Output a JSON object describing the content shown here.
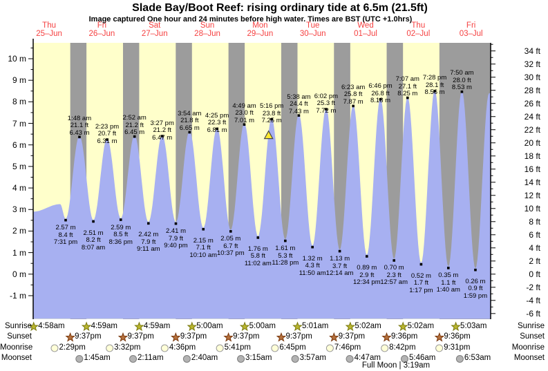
{
  "header": {
    "title": "Slade Bay/Boot Reef: rising  ordinary tide at 6.5m (21.5ft)",
    "subtitle": "Image captured One hour and 24 minutes before high water. Times are BST (UTC +1.0hrs)"
  },
  "days": [
    {
      "name": "Thu",
      "date": "25–Jun"
    },
    {
      "name": "Fri",
      "date": "26–Jun"
    },
    {
      "name": "Sat",
      "date": "27–Jun"
    },
    {
      "name": "Sun",
      "date": "28–Jun"
    },
    {
      "name": "Mon",
      "date": "29–Jun"
    },
    {
      "name": "Tue",
      "date": "30–Jun"
    },
    {
      "name": "Wed",
      "date": "01–Jul"
    },
    {
      "name": "Thu",
      "date": "02–Jul"
    },
    {
      "name": "Fri",
      "date": "03–Jul"
    }
  ],
  "chart_data": {
    "type": "area",
    "title": "Slade Bay/Boot Reef tide curve",
    "y_axis_left": {
      "unit": "m",
      "min": -1,
      "max": 10,
      "step": 1,
      "minor": 0.5
    },
    "y_axis_right": {
      "unit": "ft",
      "min": -6,
      "max": 34,
      "step": 2,
      "minor": 1
    },
    "colors": {
      "day": "#ffffcb",
      "night": "#9c9c9c",
      "water": "#a7b0f1",
      "label_red": "#f54040",
      "sunrise_star": "#b9b52e",
      "sunset_star": "#b5703c",
      "moonrise_disc": "#ffffd8",
      "moonset_disc": "#b3b3b3",
      "marker": "#ffe930"
    },
    "events": [
      {
        "type": "low",
        "time": "7:31 pm",
        "ft": "8.4 ft",
        "m": "2.57 m",
        "t": 19.517,
        "h": 2.57
      },
      {
        "type": "high",
        "time": "1:48 am",
        "ft": "21.1 ft",
        "m": "6.43 m",
        "t": 25.8,
        "h": 6.43
      },
      {
        "type": "low",
        "time": "8:07 am",
        "ft": "8.2 ft",
        "m": "2.51 m",
        "t": 32.117,
        "h": 2.51
      },
      {
        "type": "high",
        "time": "2:23 pm",
        "ft": "20.7 ft",
        "m": "6.31 m",
        "t": 38.383,
        "h": 6.31
      },
      {
        "type": "low",
        "time": "8:36 pm",
        "ft": "8.5 ft",
        "m": "2.59 m",
        "t": 44.6,
        "h": 2.59
      },
      {
        "type": "high",
        "time": "2:52 am",
        "ft": "21.2 ft",
        "m": "6.45 m",
        "t": 50.867,
        "h": 6.45
      },
      {
        "type": "low",
        "time": "9:11 am",
        "ft": "7.9 ft",
        "m": "2.42 m",
        "t": 57.183,
        "h": 2.42
      },
      {
        "type": "high",
        "time": "3:27 pm",
        "ft": "21.2 ft",
        "m": "6.47 m",
        "t": 63.45,
        "h": 6.47
      },
      {
        "type": "low",
        "time": "9:40 pm",
        "ft": "7.9 ft",
        "m": "2.41 m",
        "t": 69.667,
        "h": 2.41
      },
      {
        "type": "high",
        "time": "3:54 am",
        "ft": "21.8 ft",
        "m": "6.65 m",
        "t": 75.9,
        "h": 6.65
      },
      {
        "type": "low",
        "time": "10:10 am",
        "ft": "7.1 ft",
        "m": "2.15 m",
        "t": 82.167,
        "h": 2.15
      },
      {
        "type": "high",
        "time": "4:25 pm",
        "ft": "22.3 ft",
        "m": "6.81 m",
        "t": 88.417,
        "h": 6.81
      },
      {
        "type": "low",
        "time": "10:37 pm",
        "ft": "6.7 ft",
        "m": "2.05 m",
        "t": 94.617,
        "h": 2.05
      },
      {
        "type": "high",
        "time": "4:49 am",
        "ft": "23.0 ft",
        "m": "7.01 m",
        "t": 100.817,
        "h": 7.01
      },
      {
        "type": "low",
        "time": "11:02 am",
        "ft": "5.8 ft",
        "m": "1.76 m",
        "t": 107.033,
        "h": 1.76
      },
      {
        "type": "high",
        "time": "5:16 pm",
        "ft": "23.8 ft",
        "m": "7.25 m",
        "t": 113.267,
        "h": 7.25
      },
      {
        "type": "low",
        "time": "11:28 pm",
        "ft": "5.3 ft",
        "m": "1.61 m",
        "t": 119.467,
        "h": 1.61
      },
      {
        "type": "high",
        "time": "5:38 am",
        "ft": "24.4 ft",
        "m": "7.43 m",
        "t": 125.633,
        "h": 7.43
      },
      {
        "type": "low",
        "time": "11:50 am",
        "ft": "4.3 ft",
        "m": "1.32 m",
        "t": 131.833,
        "h": 1.32
      },
      {
        "type": "high",
        "time": "6:02 pm",
        "ft": "25.3 ft",
        "m": "7.72 m",
        "t": 138.033,
        "h": 7.72
      },
      {
        "type": "low",
        "time": "12:14 am",
        "ft": "3.7 ft",
        "m": "1.13 m",
        "t": 144.233,
        "h": 1.13
      },
      {
        "type": "high",
        "time": "6:23 am",
        "ft": "25.8 ft",
        "m": "7.87 m",
        "t": 150.383,
        "h": 7.87
      },
      {
        "type": "low",
        "time": "12:34 pm",
        "ft": "2.9 ft",
        "m": "0.89 m",
        "t": 156.567,
        "h": 0.89
      },
      {
        "type": "high",
        "time": "6:46 pm",
        "ft": "26.8 ft",
        "m": "8.18 m",
        "t": 162.767,
        "h": 8.18
      },
      {
        "type": "low",
        "time": "12:57 am",
        "ft": "2.3 ft",
        "m": "0.70 m",
        "t": 168.95,
        "h": 0.7
      },
      {
        "type": "high",
        "time": "7:07 am",
        "ft": "27.1 ft",
        "m": "8.25 m",
        "t": 175.117,
        "h": 8.25
      },
      {
        "type": "low",
        "time": "1:17 pm",
        "ft": "1.7 ft",
        "m": "0.52 m",
        "t": 181.283,
        "h": 0.52
      },
      {
        "type": "high",
        "time": "7:28 pm",
        "ft": "28.1 ft",
        "m": "8.56 m",
        "t": 187.467,
        "h": 8.56
      },
      {
        "type": "low",
        "time": "1:40 am",
        "ft": "1.1 ft",
        "m": "0.35 m",
        "t": 193.667,
        "h": 0.35
      },
      {
        "type": "high",
        "time": "7:50 am",
        "ft": "28.0 ft",
        "m": "8.53 m",
        "t": 199.833,
        "h": 8.53
      },
      {
        "type": "low",
        "time": "1:59 pm",
        "ft": "0.9 ft",
        "m": "0.26 m",
        "t": 205.983,
        "h": 0.26
      }
    ],
    "edge_anchors": [
      {
        "t": 4.8,
        "h": 2.9
      },
      {
        "t": 17.0,
        "h": 3.25
      },
      {
        "t": 212.2,
        "h": 8.4
      }
    ],
    "current_marker": {
      "t": 111.867,
      "h": 6.5
    }
  },
  "almanac": {
    "rows": [
      {
        "label": "Sunrise",
        "icon": "sunrise-star",
        "entries": [
          {
            "time": "4:58am",
            "t": 4.967
          },
          {
            "time": "4:59am",
            "t": 28.983
          },
          {
            "time": "4:59am",
            "t": 52.983
          },
          {
            "time": "5:00am",
            "t": 77.0
          },
          {
            "time": "5:00am",
            "t": 101.0
          },
          {
            "time": "5:01am",
            "t": 125.017
          },
          {
            "time": "5:02am",
            "t": 149.033
          },
          {
            "time": "5:02am",
            "t": 173.033
          },
          {
            "time": "5:03am",
            "t": 197.05
          }
        ]
      },
      {
        "label": "Sunset",
        "icon": "sunset-star",
        "entries": [
          {
            "time": "9:37pm",
            "t": 21.617
          },
          {
            "time": "9:37pm",
            "t": 45.617
          },
          {
            "time": "9:37pm",
            "t": 69.617
          },
          {
            "time": "9:37pm",
            "t": 93.617
          },
          {
            "time": "9:37pm",
            "t": 117.617
          },
          {
            "time": "9:37pm",
            "t": 141.617
          },
          {
            "time": "9:36pm",
            "t": 165.6
          },
          {
            "time": "9:36pm",
            "t": 189.6
          }
        ]
      },
      {
        "label": "Moonrise",
        "icon": "moonrise-disc",
        "entries": [
          {
            "time": "2:29pm",
            "t": 14.483
          },
          {
            "time": "3:32pm",
            "t": 39.533
          },
          {
            "time": "4:36pm",
            "t": 64.6
          },
          {
            "time": "5:41pm",
            "t": 89.683
          },
          {
            "time": "6:45pm",
            "t": 114.75
          },
          {
            "time": "7:46pm",
            "t": 139.767
          },
          {
            "time": "8:42pm",
            "t": 164.7
          },
          {
            "time": "9:31pm",
            "t": 189.517
          }
        ]
      },
      {
        "label": "Moonset",
        "icon": "moonset-disc",
        "entries": [
          {
            "time": "1:45am",
            "t": 25.75
          },
          {
            "time": "2:11am",
            "t": 50.183
          },
          {
            "time": "2:40am",
            "t": 74.667
          },
          {
            "time": "3:15am",
            "t": 99.25
          },
          {
            "time": "3:57am",
            "t": 123.95
          },
          {
            "time": "4:47am",
            "t": 148.783
          },
          {
            "time": "5:46am",
            "t": 173.767
          },
          {
            "time": "6:53am",
            "t": 198.883
          }
        ]
      }
    ],
    "full_moon": "Full Moon | 3:19am"
  }
}
